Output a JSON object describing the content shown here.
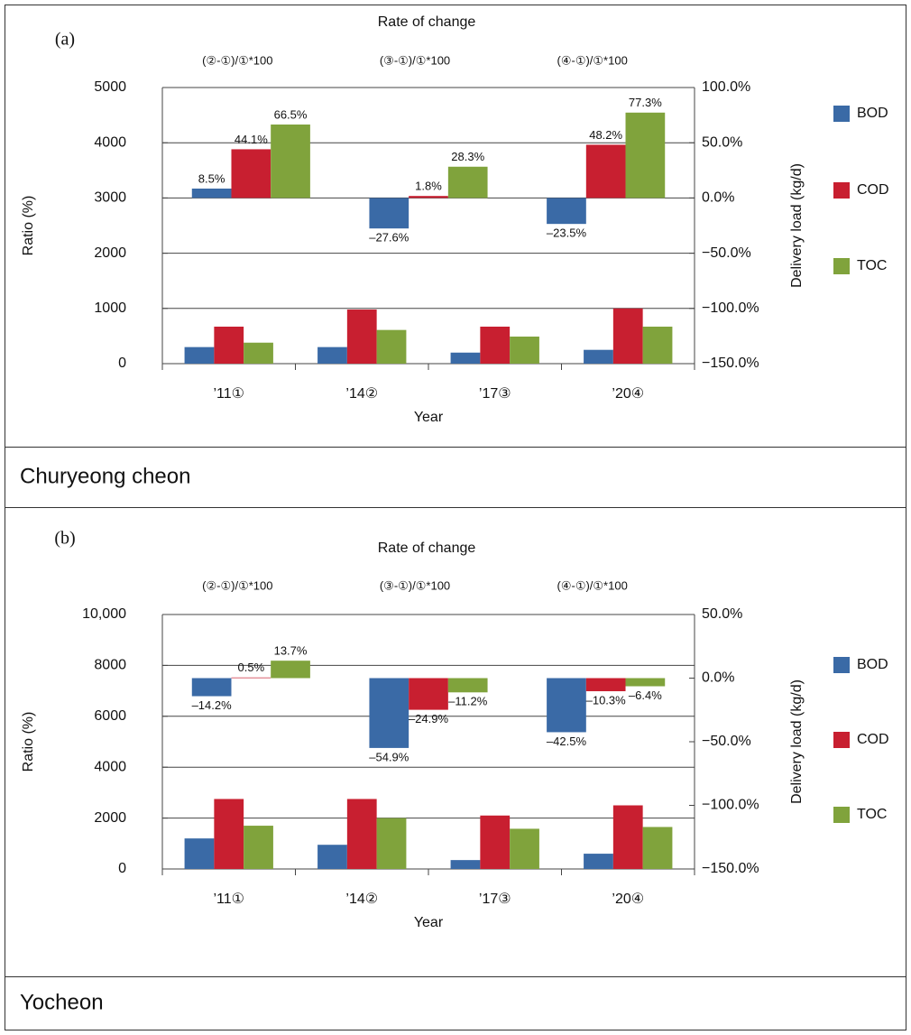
{
  "chart_data": [
    {
      "type": "bar",
      "panel_label": "(a)",
      "title": "Rate of change",
      "caption": "Churyeong cheon",
      "y_label": "Ratio (%)",
      "y2_label": "Delivery load (kg/d)",
      "x_label": "Year",
      "categories": [
        "’11①",
        "’14②",
        "’17③",
        "’20④"
      ],
      "rate_categories": [
        "(②-①)/①*100",
        "(③-①)/①*100",
        "(④-①)/①*100"
      ],
      "ylim": [
        0,
        5000
      ],
      "yticks": [
        0,
        1000,
        2000,
        3000,
        4000,
        5000
      ],
      "y2lim": [
        -150,
        100
      ],
      "y2ticks": [
        {
          "value": 100,
          "label": "100.0%"
        },
        {
          "value": 50,
          "label": "50.0%"
        },
        {
          "value": 0,
          "label": "0.0%"
        },
        {
          "value": -50,
          "label": "−50.0%"
        },
        {
          "value": -100,
          "label": "−100.0%"
        },
        {
          "value": -150,
          "label": "−150.0%"
        }
      ],
      "grid": true,
      "series": [
        {
          "name": "BOD",
          "color": "#3a6aa6",
          "values": [
            300,
            300,
            200,
            250
          ]
        },
        {
          "name": "COD",
          "color": "#c81f30",
          "values": [
            670,
            980,
            670,
            1000
          ]
        },
        {
          "name": "TOC",
          "color": "#80a33c",
          "values": [
            380,
            610,
            490,
            670
          ]
        }
      ],
      "rate_series": [
        {
          "axis": "y2",
          "color": "#3a6aa6",
          "values": [
            8.5,
            -27.6,
            -23.5
          ],
          "value_labels": [
            "8.5%",
            "–27.6%",
            "–23.5%"
          ]
        },
        {
          "axis": "y2",
          "color": "#c81f30",
          "values": [
            44.1,
            1.8,
            48.2
          ],
          "value_labels": [
            "44.1%",
            "1.8%",
            "48.2%"
          ]
        },
        {
          "axis": "y2",
          "color": "#80a33c",
          "values": [
            66.5,
            28.3,
            77.3
          ],
          "value_labels": [
            "66.5%",
            "28.3%",
            "77.3%"
          ]
        }
      ]
    },
    {
      "type": "bar",
      "panel_label": "(b)",
      "title": "Rate of change",
      "caption": "Yocheon",
      "y_label": "Ratio (%)",
      "y2_label": "Delivery load (kg/d)",
      "x_label": "Year",
      "categories": [
        "’11①",
        "’14②",
        "’17③",
        "’20④"
      ],
      "rate_categories": [
        "(②-①)/①*100",
        "(③-①)/①*100",
        "(④-①)/①*100"
      ],
      "ylim": [
        0,
        10000
      ],
      "yticks": [
        0,
        2000,
        4000,
        6000,
        8000,
        {
          "value": 10000,
          "label": "10,000"
        }
      ],
      "y2lim": [
        -150,
        50
      ],
      "y2ticks": [
        {
          "value": 50,
          "label": "50.0%"
        },
        {
          "value": 0,
          "label": "0.0%"
        },
        {
          "value": -50,
          "label": "−50.0%"
        },
        {
          "value": -100,
          "label": "−100.0%"
        },
        {
          "value": -150,
          "label": "−150.0%"
        }
      ],
      "grid": true,
      "series": [
        {
          "name": "BOD",
          "color": "#3a6aa6",
          "values": [
            1200,
            950,
            350,
            600
          ]
        },
        {
          "name": "COD",
          "color": "#c81f30",
          "values": [
            2750,
            2750,
            2100,
            2500
          ]
        },
        {
          "name": "TOC",
          "color": "#80a33c",
          "values": [
            1700,
            2000,
            1580,
            1650
          ]
        }
      ],
      "rate_series": [
        {
          "axis": "y2",
          "color": "#3a6aa6",
          "values": [
            -14.2,
            -54.9,
            -42.5
          ],
          "value_labels": [
            "–14.2%",
            "–54.9%",
            "–42.5%"
          ]
        },
        {
          "axis": "y2",
          "color": "#c81f30",
          "values": [
            0.5,
            -24.9,
            -10.3
          ],
          "value_labels": [
            "0.5%",
            "–24.9%",
            "–10.3%"
          ]
        },
        {
          "axis": "y2",
          "color": "#80a33c",
          "values": [
            13.7,
            -11.2,
            -6.4
          ],
          "value_labels": [
            "13.7%",
            "–11.2%",
            "–6.4%"
          ]
        }
      ]
    }
  ]
}
